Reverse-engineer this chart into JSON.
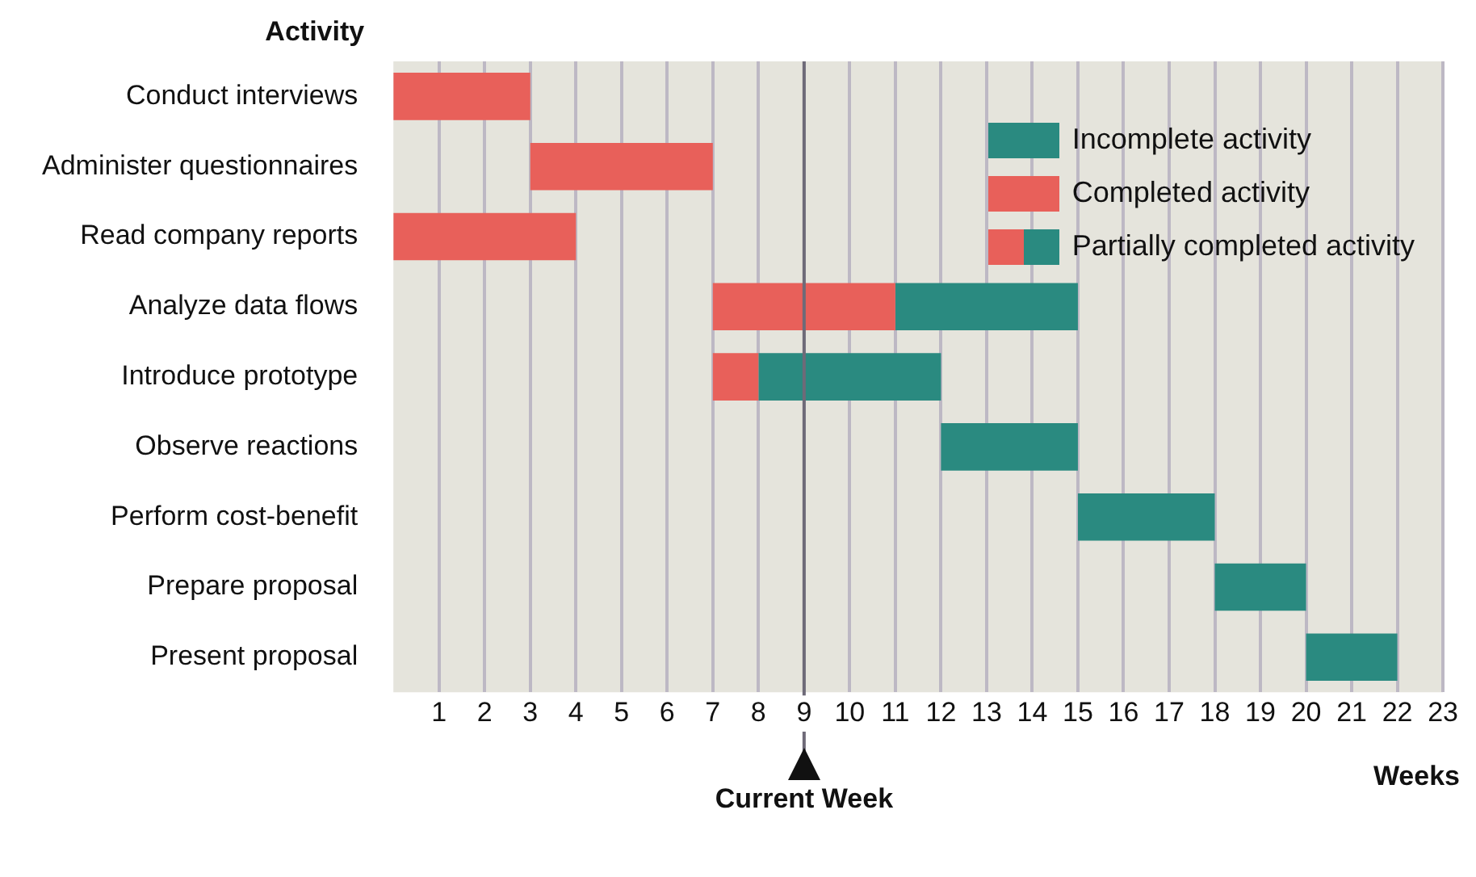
{
  "chart_data": {
    "type": "bar",
    "orientation": "horizontal",
    "stacked": true,
    "categories": [
      "Conduct interviews",
      "Administer questionnaires",
      "Read company reports",
      "Analyze data flows",
      "Introduce prototype",
      "Observe reactions",
      "Perform cost-benefit",
      "Prepare proposal",
      "Present proposal"
    ],
    "series": [
      {
        "name": "Completed activity",
        "color": "#e8605a",
        "base": [
          0,
          3,
          0,
          7,
          7,
          null,
          null,
          null,
          null
        ],
        "values": [
          3,
          4,
          4,
          4,
          1,
          null,
          null,
          null,
          null
        ]
      },
      {
        "name": "Incomplete activity",
        "color": "#2a8a80",
        "base": [
          null,
          null,
          null,
          11,
          8,
          12,
          15,
          18,
          20
        ],
        "values": [
          null,
          null,
          null,
          4,
          4,
          3,
          3,
          2,
          2
        ]
      }
    ],
    "xlabel": "Weeks",
    "ylabel": "Activity",
    "xlim": [
      0,
      23
    ],
    "xticks": [
      1,
      2,
      3,
      4,
      5,
      6,
      7,
      8,
      9,
      10,
      11,
      12,
      13,
      14,
      15,
      16,
      17,
      18,
      19,
      20,
      21,
      22,
      23
    ],
    "grid": "x",
    "legend": "top right",
    "annotations": [
      "Partially completed activity"
    ],
    "ref_lines": [
      {
        "axis": "x",
        "value": 9,
        "label": "Current Week",
        "color": "#6e6a78"
      }
    ]
  }
}
